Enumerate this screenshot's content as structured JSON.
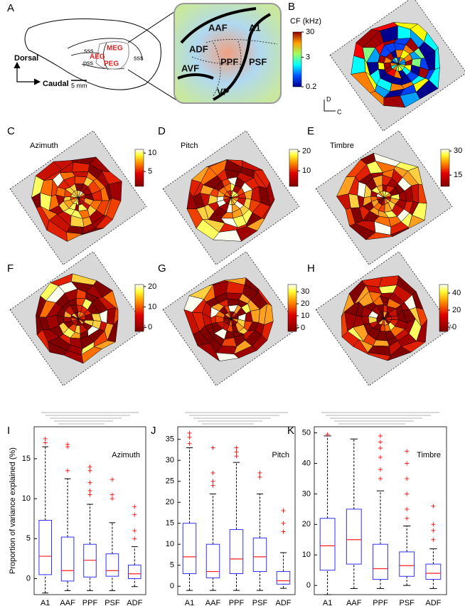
{
  "panel_labels": [
    "A",
    "B",
    "C",
    "D",
    "E",
    "F",
    "G",
    "H",
    "I",
    "J",
    "K"
  ],
  "panel_a": {
    "orientation": [
      "Dorsal",
      "Caudal"
    ],
    "scale_bar": "5 mm",
    "sulci": [
      "sss",
      "pss",
      "sss"
    ],
    "areas": [
      "MEG",
      "AEG",
      "PEG"
    ],
    "fields": [
      "AAF",
      "A1",
      "ADF",
      "PPF",
      "PSF",
      "AVF",
      "VP"
    ]
  },
  "panel_b": {
    "colorbar_title": "CF (kHz)",
    "clim": [
      0.2,
      30
    ],
    "cticks": [
      30,
      3,
      0.2
    ],
    "log_scale": true,
    "axes": [
      "D",
      "C"
    ]
  },
  "maps": [
    {
      "title": "Azimuth",
      "clim": [
        1,
        11
      ],
      "cticks": [
        10,
        5
      ]
    },
    {
      "title": "Pitch",
      "clim": [
        2,
        21
      ],
      "cticks": [
        20,
        10
      ]
    },
    {
      "title": "Timbre",
      "clim": [
        8,
        31
      ],
      "cticks": [
        30,
        15
      ]
    },
    {
      "clim": [
        -2,
        21
      ],
      "cticks": [
        20,
        10,
        0
      ]
    },
    {
      "clim": [
        -3,
        36
      ],
      "cticks": [
        30,
        20,
        10,
        0
      ]
    },
    {
      "clim": [
        -5,
        50
      ],
      "cticks": [
        40,
        20,
        0
      ]
    }
  ],
  "chart_data": [
    {
      "type": "box",
      "title": "Azimuth",
      "ylabel": "Proportion of variance explained (%)",
      "categories": [
        "A1",
        "AAF",
        "PPF",
        "PSF",
        "ADF"
      ],
      "ylim": [
        -2,
        19
      ],
      "yticks": [
        0,
        5,
        10,
        15
      ],
      "box_color": "#3030ff",
      "median_color": "#ff2020",
      "outlier_color": "#ff2020",
      "stats": {
        "min": [
          -1.8,
          -1.5,
          -1.5,
          -1.5,
          -1
        ],
        "q1": [
          0.5,
          -0.3,
          0.2,
          0.3,
          0
        ],
        "median": [
          2.8,
          1.0,
          2.3,
          1.0,
          0.6
        ],
        "q3": [
          7.3,
          5.2,
          4.3,
          3.1,
          1.7
        ],
        "max": [
          16.5,
          12.5,
          9.3,
          7.0,
          4.0
        ],
        "outliers": [
          [
            17,
            17.5
          ],
          [
            13.5,
            16.5,
            16.8
          ],
          [
            10.5,
            11,
            12,
            13.5,
            14
          ],
          [
            10,
            10.5,
            12.4
          ],
          [
            5,
            6,
            8,
            9
          ]
        ]
      }
    },
    {
      "type": "box",
      "title": "Pitch",
      "categories": [
        "A1",
        "AAF",
        "PPF",
        "PSF",
        "ADF"
      ],
      "ylim": [
        -2,
        38
      ],
      "yticks": [
        0,
        5,
        10,
        15,
        20,
        25,
        30,
        35
      ],
      "box_color": "#3030ff",
      "median_color": "#ff2020",
      "outlier_color": "#ff2020",
      "stats": {
        "min": [
          -1,
          -1,
          -1,
          -1,
          -0.5
        ],
        "q1": [
          3,
          2,
          3,
          3.5,
          0.5
        ],
        "median": [
          7,
          3.5,
          6.5,
          7,
          1.3
        ],
        "q3": [
          15,
          10,
          13.5,
          11.5,
          3.5
        ],
        "max": [
          33,
          22,
          29.5,
          22,
          8
        ],
        "outliers": [
          [
            34,
            35.5,
            36.5
          ],
          [
            24,
            25,
            27,
            33
          ],
          [
            31,
            32,
            33
          ],
          [
            26,
            27
          ],
          [
            13,
            15,
            18
          ]
        ]
      }
    },
    {
      "type": "box",
      "title": "Timbre",
      "categories": [
        "A1",
        "AAF",
        "PPF",
        "PSF",
        "ADF"
      ],
      "ylim": [
        -3,
        52
      ],
      "yticks": [
        0,
        10,
        20,
        30,
        40,
        50
      ],
      "box_color": "#3030ff",
      "median_color": "#ff2020",
      "outlier_color": "#ff2020",
      "stats": {
        "min": [
          -3,
          -1,
          -1,
          0,
          -1
        ],
        "q1": [
          5,
          7,
          2,
          3,
          2
        ],
        "median": [
          13,
          15,
          5.5,
          6.5,
          4
        ],
        "q3": [
          22,
          25,
          13.5,
          11,
          7
        ],
        "max": [
          49,
          48,
          31,
          19.5,
          12
        ],
        "outliers": [
          [
            49.5
          ],
          [],
          [
            35,
            38,
            42,
            45,
            47,
            49
          ],
          [
            22,
            25,
            30,
            35,
            40,
            44
          ],
          [
            15,
            18,
            20,
            26
          ]
        ]
      }
    }
  ]
}
